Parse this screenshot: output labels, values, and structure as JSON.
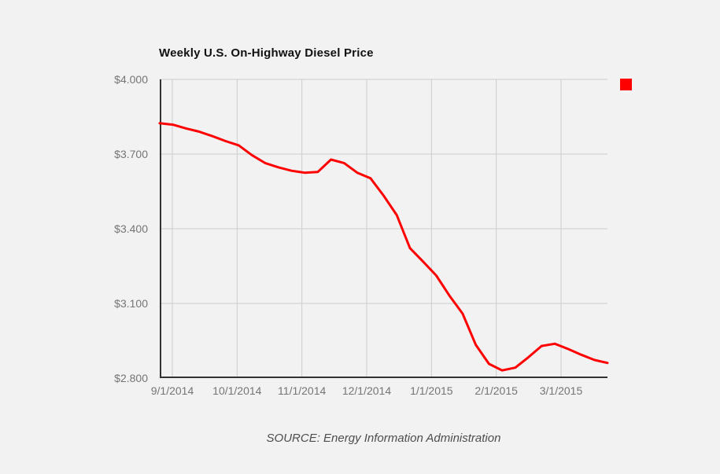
{
  "page": {
    "background": "#f2f2f2"
  },
  "chart": {
    "title": "Weekly U.S. On-Highway Diesel Price",
    "source_note": "SOURCE: Energy Information Administration",
    "colors": {
      "line": "#ff0000",
      "legend_marker": "#ff0000",
      "axis": "#333333",
      "gridline": "#cccccc",
      "tick_label": "#757575",
      "title_text": "#111111",
      "source_text": "#4d4d4d"
    }
  },
  "chart_data": {
    "type": "line",
    "title": "Weekly U.S. On-Highway Diesel Price",
    "source": "SOURCE: Energy Information Administration",
    "ylabel": "",
    "xlabel": "",
    "ylim": [
      2.8,
      4.0
    ],
    "grid": true,
    "legend_position": "top-right-swatch-only",
    "y_ticks": [
      {
        "value": 4.0,
        "label": "$4.000"
      },
      {
        "value": 3.7,
        "label": "$3.700"
      },
      {
        "value": 3.4,
        "label": "$3.400"
      },
      {
        "value": 3.1,
        "label": "$3.100"
      },
      {
        "value": 2.8,
        "label": "$2.800"
      }
    ],
    "x_tick_labels": [
      "9/1/2014",
      "10/1/2014",
      "11/1/2014",
      "12/1/2014",
      "1/1/2015",
      "2/1/2015",
      "3/1/2015"
    ],
    "x": [
      "9/1/2014",
      "9/8/2014",
      "9/15/2014",
      "9/22/2014",
      "9/29/2014",
      "10/6/2014",
      "10/13/2014",
      "10/20/2014",
      "10/27/2014",
      "11/3/2014",
      "11/10/2014",
      "11/17/2014",
      "11/24/2014",
      "12/1/2014",
      "12/8/2014",
      "12/15/2014",
      "12/22/2014",
      "12/29/2014",
      "1/5/2015",
      "1/12/2015",
      "1/19/2015",
      "1/26/2015",
      "2/2/2015",
      "2/9/2015",
      "2/16/2015",
      "2/23/2015",
      "3/2/2015",
      "3/9/2015",
      "3/16/2015",
      "3/23/2015",
      "3/30/2015",
      "4/6/2015",
      "4/13/2015",
      "4/20/2015",
      "4/27/2015"
    ],
    "series": [
      {
        "name": "",
        "values": [
          3.824,
          3.818,
          3.803,
          3.79,
          3.772,
          3.752,
          3.735,
          3.696,
          3.664,
          3.647,
          3.633,
          3.625,
          3.628,
          3.678,
          3.664,
          3.625,
          3.603,
          3.533,
          3.455,
          3.322,
          3.268,
          3.212,
          3.131,
          3.059,
          2.934,
          2.857,
          2.831,
          2.842,
          2.884,
          2.929,
          2.938,
          2.917,
          2.894,
          2.873,
          2.861
        ]
      }
    ]
  }
}
